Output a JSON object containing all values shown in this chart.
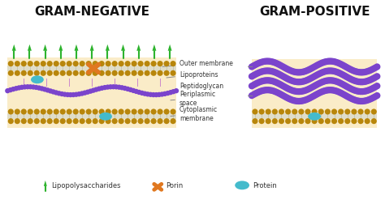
{
  "title_left": "GRAM-NEGATIVE",
  "title_right": "GRAM-POSITIVE",
  "bg_color": "#ffffff",
  "fill_color": "#faecc8",
  "outer_membrane_color": "#b8860b",
  "membrane_spacer_color": "#e0ddc8",
  "peptidoglycan_color": "#7b44cc",
  "lipopolysaccharide_color": "#2db32d",
  "porin_color": "#e07820",
  "protein_color": "#44bbcc",
  "label_outer_membrane": "Outer membrane",
  "label_lipoproteins": "Lipoproteins",
  "label_peptidoglycan": "Peptidoglycan",
  "label_periplasmic": "Periplasmic\nspace",
  "label_cytoplasmic": "Cytoplasmic\nmembrane",
  "legend_lps": "Lipopolysaccharides",
  "legend_porin": "Porin",
  "legend_protein": "Protein",
  "title_fontsize": 11,
  "label_fontsize": 5.5
}
